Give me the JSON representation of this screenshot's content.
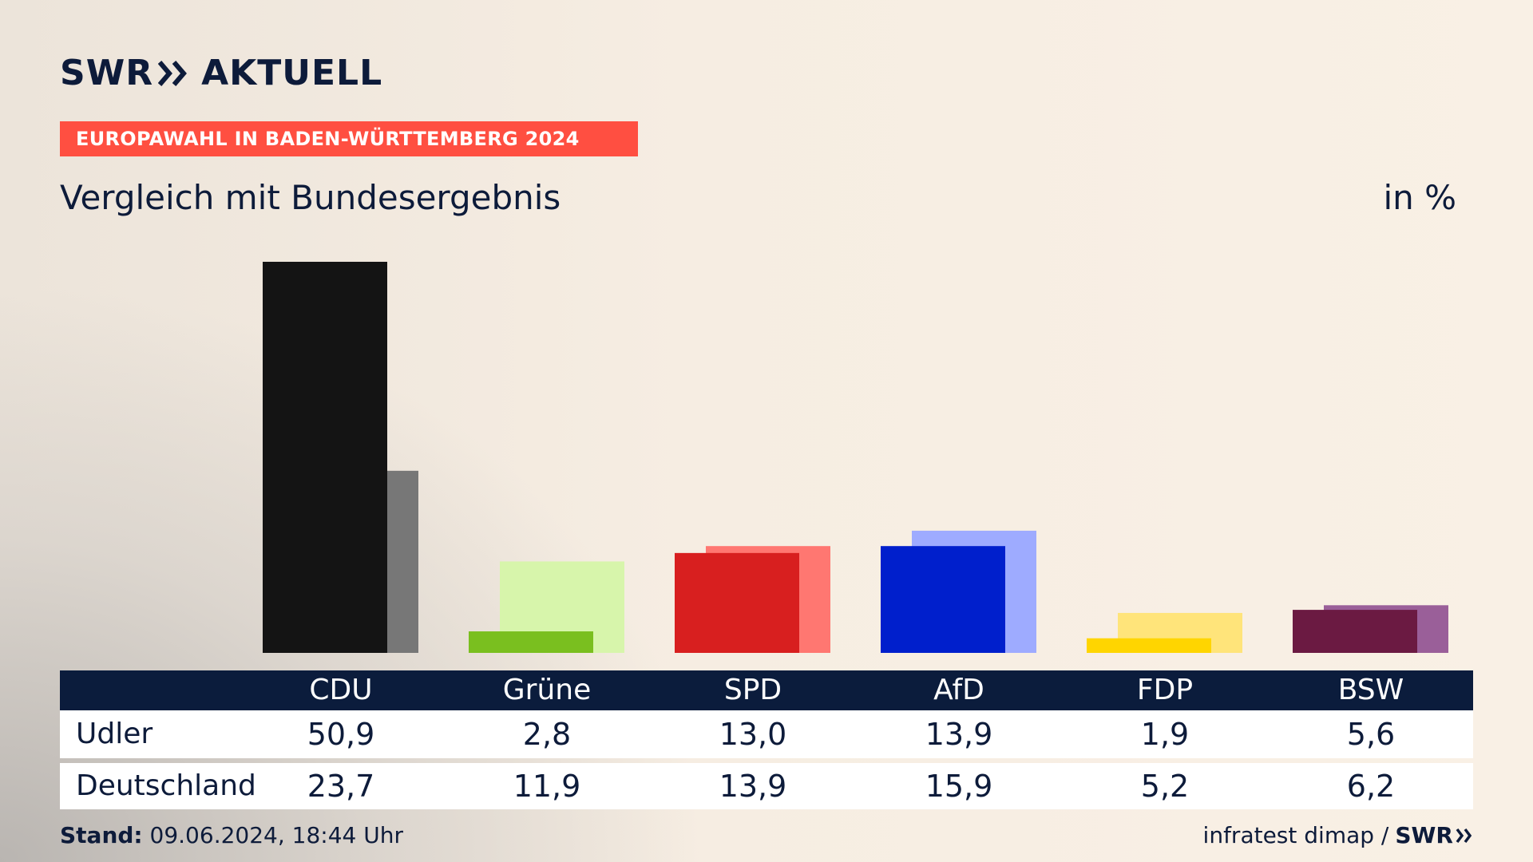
{
  "header": {
    "logo_left": "SWR",
    "logo_right": "AKTUELL",
    "kicker": "EUROPAWAHL IN BADEN-WÜRTTEMBERG 2024",
    "title": "Vergleich mit Bundesergebnis",
    "unit": "in %"
  },
  "colors": {
    "kicker_bg": "#ff4f41",
    "navy": "#0b1c3c"
  },
  "chart_data": {
    "type": "bar",
    "categories": [
      "CDU",
      "Grüne",
      "SPD",
      "AfD",
      "FDP",
      "BSW"
    ],
    "series": [
      {
        "name": "Udler",
        "values": [
          50.9,
          2.8,
          13.0,
          13.9,
          1.9,
          5.6
        ],
        "colors": [
          "#141414",
          "#7abf1f",
          "#d81f1f",
          "#001fcc",
          "#ffd500",
          "#6b1a42"
        ]
      },
      {
        "name": "Deutschland",
        "values": [
          23.7,
          11.9,
          13.9,
          15.9,
          5.2,
          6.2
        ],
        "colors": [
          "#777777",
          "#d7f5ab",
          "#ff7771",
          "#9eabff",
          "#ffe47a",
          "#9a5f99"
        ]
      }
    ],
    "display_values": [
      [
        "50,9",
        "2,8",
        "13,0",
        "13,9",
        "1,9",
        "5,6"
      ],
      [
        "23,7",
        "11,9",
        "13,9",
        "15,9",
        "5,2",
        "6,2"
      ]
    ],
    "ylim": [
      0,
      50.9
    ],
    "grid": false,
    "legend": "table-below"
  },
  "footer": {
    "stand_label": "Stand:",
    "stand_value": "09.06.2024, 18:44 Uhr",
    "source": "infratest dimap /",
    "source_logo": "SWR"
  }
}
